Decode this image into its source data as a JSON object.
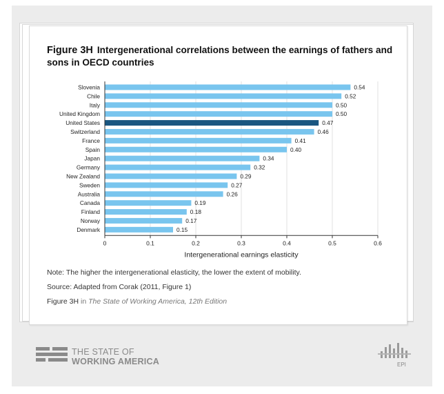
{
  "figure": {
    "label": "Figure 3H",
    "title": "Intergenerational correlations between the earnings of fathers and sons in OECD countries",
    "note": "Note: The higher the intergenerational elasticity, the lower the extent of mobility.",
    "source": "Source: Adapted from Corak (2011, Figure 1)",
    "citation_prefix": "Figure 3H",
    "citation_in": "in",
    "citation_title": "The State of Working America, 12th Edition"
  },
  "branding": {
    "line1": "THE STATE OF",
    "line2": "WORKING AMERICA",
    "epi_label": "EPI",
    "logo_icon": "swa-stripes-icon",
    "epi_icon": "epi-bars-icon"
  },
  "colors": {
    "bar": "#79c5ee",
    "highlight": "#1a5680",
    "grid": "#e2e2e2",
    "axis": "#333333"
  },
  "chart_data": {
    "type": "bar",
    "orientation": "horizontal",
    "categories": [
      "Slovenia",
      "Chile",
      "Italy",
      "United Kingdom",
      "United States",
      "Switzerland",
      "France",
      "Spain",
      "Japan",
      "Germany",
      "New Zealand",
      "Sweden",
      "Australia",
      "Canada",
      "Finland",
      "Norway",
      "Denmark"
    ],
    "values": [
      0.54,
      0.52,
      0.5,
      0.5,
      0.47,
      0.46,
      0.41,
      0.4,
      0.34,
      0.32,
      0.29,
      0.27,
      0.26,
      0.19,
      0.18,
      0.17,
      0.15
    ],
    "value_labels": [
      "0.54",
      "0.52",
      "0.50",
      "0.50",
      "0.47",
      "0.46",
      "0.41",
      "0.40",
      "0.34",
      "0.32",
      "0.29",
      "0.27",
      "0.26",
      "0.19",
      "0.18",
      "0.17",
      "0.15"
    ],
    "highlight": "United States",
    "xlabel": "Intergenerational earnings elasticity",
    "xlim": [
      0,
      0.6
    ],
    "xticks": [
      0,
      0.1,
      0.2,
      0.3,
      0.4,
      0.5,
      0.6
    ],
    "xtick_labels": [
      "0",
      "0.1",
      "0.2",
      "0.3",
      "0.4",
      "0.5",
      "0.6"
    ],
    "grid": true
  }
}
